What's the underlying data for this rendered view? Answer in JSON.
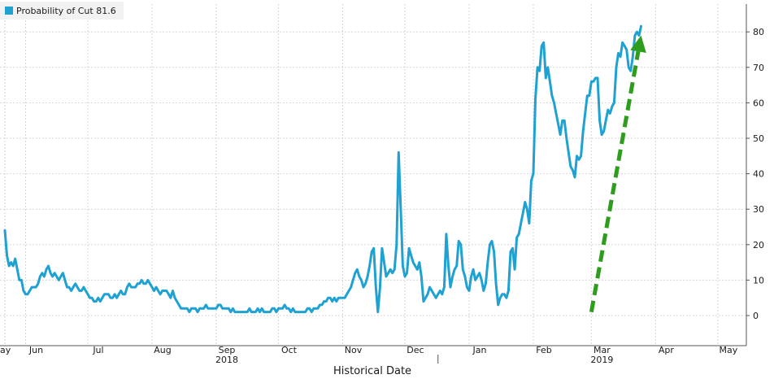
{
  "chart_data": {
    "type": "line",
    "xlabel": "Historical Date",
    "ylabel": "",
    "ylim": [
      -5,
      85
    ],
    "y_ticks": [
      0,
      10,
      20,
      30,
      40,
      50,
      60,
      70,
      80
    ],
    "y_axis_side": "right",
    "grid": true,
    "legend": {
      "position": "top-left",
      "entries": [
        "Probability of Cut 81.6"
      ]
    },
    "x_tick_labels": [
      {
        "label": "ay",
        "day": 0
      },
      {
        "label": "Jun",
        "day": 10
      },
      {
        "label": "Jul",
        "day": 40
      },
      {
        "label": "Aug",
        "day": 71
      },
      {
        "label": "Sep",
        "day": 102
      },
      {
        "label": "Oct",
        "day": 132
      },
      {
        "label": "Nov",
        "day": 163
      },
      {
        "label": "Dec",
        "day": 193
      },
      {
        "label": "Jan",
        "day": 224
      },
      {
        "label": "Feb",
        "day": 255
      },
      {
        "label": "Mar",
        "day": 283
      },
      {
        "label": "Apr",
        "day": 314
      },
      {
        "label": "May",
        "day": 344
      }
    ],
    "year_labels": [
      {
        "label": "2018",
        "day": 102
      },
      {
        "label": "2019",
        "day": 283
      }
    ],
    "year_separator_day": 209,
    "xlim_days": [
      0,
      362
    ],
    "series": [
      {
        "name": "Probability of Cut",
        "color": "#1fa2d2",
        "points": [
          [
            0,
            24
          ],
          [
            1,
            17
          ],
          [
            2,
            14
          ],
          [
            3,
            15
          ],
          [
            4,
            14
          ],
          [
            5,
            16
          ],
          [
            6,
            13
          ],
          [
            7,
            10
          ],
          [
            8,
            10
          ],
          [
            9,
            7
          ],
          [
            10,
            6
          ],
          [
            11,
            6
          ],
          [
            12,
            7
          ],
          [
            13,
            8
          ],
          [
            14,
            8
          ],
          [
            15,
            8
          ],
          [
            16,
            9
          ],
          [
            17,
            11
          ],
          [
            18,
            12
          ],
          [
            19,
            11
          ],
          [
            20,
            13
          ],
          [
            21,
            14
          ],
          [
            22,
            12
          ],
          [
            23,
            11
          ],
          [
            24,
            12
          ],
          [
            25,
            11
          ],
          [
            26,
            10
          ],
          [
            27,
            11
          ],
          [
            28,
            12
          ],
          [
            29,
            10
          ],
          [
            30,
            8
          ],
          [
            31,
            8
          ],
          [
            32,
            7
          ],
          [
            33,
            8
          ],
          [
            34,
            9
          ],
          [
            35,
            8
          ],
          [
            36,
            7
          ],
          [
            37,
            7
          ],
          [
            38,
            8
          ],
          [
            39,
            7
          ],
          [
            40,
            6
          ],
          [
            41,
            5
          ],
          [
            42,
            5
          ],
          [
            43,
            4
          ],
          [
            44,
            4
          ],
          [
            45,
            5
          ],
          [
            46,
            4
          ],
          [
            47,
            5
          ],
          [
            48,
            6
          ],
          [
            49,
            6
          ],
          [
            50,
            6
          ],
          [
            51,
            5
          ],
          [
            52,
            5
          ],
          [
            53,
            6
          ],
          [
            54,
            5
          ],
          [
            55,
            6
          ],
          [
            56,
            7
          ],
          [
            57,
            6
          ],
          [
            58,
            6
          ],
          [
            59,
            8
          ],
          [
            60,
            9
          ],
          [
            61,
            8
          ],
          [
            62,
            8
          ],
          [
            63,
            8
          ],
          [
            64,
            9
          ],
          [
            65,
            9
          ],
          [
            66,
            10
          ],
          [
            67,
            9
          ],
          [
            68,
            9
          ],
          [
            69,
            10
          ],
          [
            70,
            9
          ],
          [
            71,
            8
          ],
          [
            72,
            7
          ],
          [
            73,
            8
          ],
          [
            74,
            7
          ],
          [
            75,
            6
          ],
          [
            76,
            7
          ],
          [
            77,
            7
          ],
          [
            78,
            7
          ],
          [
            79,
            6
          ],
          [
            80,
            5
          ],
          [
            81,
            7
          ],
          [
            82,
            5
          ],
          [
            83,
            4
          ],
          [
            84,
            3
          ],
          [
            85,
            2
          ],
          [
            86,
            2
          ],
          [
            87,
            2
          ],
          [
            88,
            2
          ],
          [
            89,
            1
          ],
          [
            90,
            2
          ],
          [
            91,
            2
          ],
          [
            92,
            2
          ],
          [
            93,
            1
          ],
          [
            94,
            2
          ],
          [
            95,
            2
          ],
          [
            96,
            2
          ],
          [
            97,
            3
          ],
          [
            98,
            2
          ],
          [
            99,
            2
          ],
          [
            100,
            2
          ],
          [
            101,
            2
          ],
          [
            102,
            2
          ],
          [
            103,
            3
          ],
          [
            104,
            3
          ],
          [
            105,
            2
          ],
          [
            106,
            2
          ],
          [
            107,
            2
          ],
          [
            108,
            2
          ],
          [
            109,
            1
          ],
          [
            110,
            2
          ],
          [
            111,
            1
          ],
          [
            112,
            1
          ],
          [
            113,
            1
          ],
          [
            114,
            1
          ],
          [
            115,
            1
          ],
          [
            116,
            1
          ],
          [
            117,
            1
          ],
          [
            118,
            2
          ],
          [
            119,
            1
          ],
          [
            120,
            1
          ],
          [
            121,
            1
          ],
          [
            122,
            2
          ],
          [
            123,
            1
          ],
          [
            124,
            2
          ],
          [
            125,
            1
          ],
          [
            126,
            1
          ],
          [
            127,
            1
          ],
          [
            128,
            1
          ],
          [
            129,
            2
          ],
          [
            130,
            2
          ],
          [
            131,
            1
          ],
          [
            132,
            2
          ],
          [
            133,
            2
          ],
          [
            134,
            2
          ],
          [
            135,
            3
          ],
          [
            136,
            2
          ],
          [
            137,
            2
          ],
          [
            138,
            1
          ],
          [
            139,
            2
          ],
          [
            140,
            1
          ],
          [
            141,
            1
          ],
          [
            142,
            1
          ],
          [
            143,
            1
          ],
          [
            144,
            1
          ],
          [
            145,
            1
          ],
          [
            146,
            2
          ],
          [
            147,
            2
          ],
          [
            148,
            1
          ],
          [
            149,
            2
          ],
          [
            150,
            2
          ],
          [
            151,
            2
          ],
          [
            152,
            3
          ],
          [
            153,
            3
          ],
          [
            154,
            4
          ],
          [
            155,
            4
          ],
          [
            156,
            5
          ],
          [
            157,
            5
          ],
          [
            158,
            4
          ],
          [
            159,
            5
          ],
          [
            160,
            4
          ],
          [
            161,
            5
          ],
          [
            162,
            5
          ],
          [
            163,
            5
          ],
          [
            164,
            5
          ],
          [
            165,
            6
          ],
          [
            166,
            7
          ],
          [
            167,
            8
          ],
          [
            168,
            10
          ],
          [
            169,
            12
          ],
          [
            170,
            13
          ],
          [
            171,
            11
          ],
          [
            172,
            10
          ],
          [
            173,
            8
          ],
          [
            174,
            9
          ],
          [
            175,
            11
          ],
          [
            176,
            14
          ],
          [
            177,
            18
          ],
          [
            178,
            19
          ],
          [
            179,
            8
          ],
          [
            180,
            1
          ],
          [
            181,
            8
          ],
          [
            182,
            19
          ],
          [
            183,
            15
          ],
          [
            184,
            11
          ],
          [
            185,
            12
          ],
          [
            186,
            13
          ],
          [
            187,
            12
          ],
          [
            188,
            13
          ],
          [
            189,
            20
          ],
          [
            190,
            46
          ],
          [
            191,
            30
          ],
          [
            192,
            14
          ],
          [
            193,
            11
          ],
          [
            194,
            12
          ],
          [
            195,
            19
          ],
          [
            196,
            17
          ],
          [
            197,
            15
          ],
          [
            198,
            14
          ],
          [
            199,
            13
          ],
          [
            200,
            15
          ],
          [
            201,
            11
          ],
          [
            202,
            4
          ],
          [
            203,
            5
          ],
          [
            204,
            6
          ],
          [
            205,
            8
          ],
          [
            206,
            7
          ],
          [
            207,
            6
          ],
          [
            208,
            5
          ],
          [
            209,
            6
          ],
          [
            210,
            7
          ],
          [
            211,
            6
          ],
          [
            212,
            8
          ],
          [
            213,
            23
          ],
          [
            214,
            14
          ],
          [
            215,
            8
          ],
          [
            216,
            11
          ],
          [
            217,
            13
          ],
          [
            218,
            14
          ],
          [
            219,
            21
          ],
          [
            220,
            20
          ],
          [
            221,
            13
          ],
          [
            222,
            11
          ],
          [
            223,
            8
          ],
          [
            224,
            7
          ],
          [
            225,
            11
          ],
          [
            226,
            13
          ],
          [
            227,
            10
          ],
          [
            228,
            11
          ],
          [
            229,
            12
          ],
          [
            230,
            10
          ],
          [
            231,
            7
          ],
          [
            232,
            9
          ],
          [
            233,
            15
          ],
          [
            234,
            20
          ],
          [
            235,
            21
          ],
          [
            236,
            18
          ],
          [
            237,
            9
          ],
          [
            238,
            3
          ],
          [
            239,
            5
          ],
          [
            240,
            6
          ],
          [
            241,
            6
          ],
          [
            242,
            5
          ],
          [
            243,
            7
          ],
          [
            244,
            18
          ],
          [
            245,
            19
          ],
          [
            246,
            13
          ],
          [
            247,
            22
          ],
          [
            248,
            23
          ],
          [
            249,
            26
          ],
          [
            250,
            29
          ],
          [
            251,
            32
          ],
          [
            252,
            30
          ],
          [
            253,
            26
          ],
          [
            254,
            38
          ],
          [
            255,
            40
          ],
          [
            256,
            61
          ],
          [
            257,
            70
          ],
          [
            258,
            69
          ],
          [
            259,
            76
          ],
          [
            260,
            77
          ],
          [
            261,
            67
          ],
          [
            262,
            70
          ],
          [
            263,
            66
          ],
          [
            264,
            62
          ],
          [
            265,
            60
          ],
          [
            266,
            57
          ],
          [
            267,
            54
          ],
          [
            268,
            51
          ],
          [
            269,
            55
          ],
          [
            270,
            55
          ],
          [
            271,
            50
          ],
          [
            272,
            46
          ],
          [
            273,
            42
          ],
          [
            274,
            41
          ],
          [
            275,
            39
          ],
          [
            276,
            45
          ],
          [
            277,
            44
          ],
          [
            278,
            45
          ],
          [
            279,
            52
          ],
          [
            280,
            57
          ],
          [
            281,
            62
          ],
          [
            282,
            62
          ],
          [
            283,
            66
          ],
          [
            284,
            66
          ],
          [
            285,
            67
          ],
          [
            286,
            67
          ],
          [
            287,
            55
          ],
          [
            288,
            51
          ],
          [
            289,
            52
          ],
          [
            290,
            55
          ],
          [
            291,
            58
          ],
          [
            292,
            57
          ],
          [
            293,
            59
          ],
          [
            294,
            60
          ],
          [
            295,
            70
          ],
          [
            296,
            74
          ],
          [
            297,
            73
          ],
          [
            298,
            77
          ],
          [
            299,
            76
          ],
          [
            300,
            75
          ],
          [
            301,
            70
          ],
          [
            302,
            69
          ],
          [
            303,
            73
          ],
          [
            304,
            79
          ],
          [
            305,
            80
          ],
          [
            306,
            79
          ],
          [
            307,
            81.6
          ]
        ]
      }
    ],
    "annotation": {
      "type": "dashed-arrow",
      "color": "#2e9d1e",
      "from": [
        283,
        1
      ],
      "to": [
        307,
        79
      ]
    }
  }
}
